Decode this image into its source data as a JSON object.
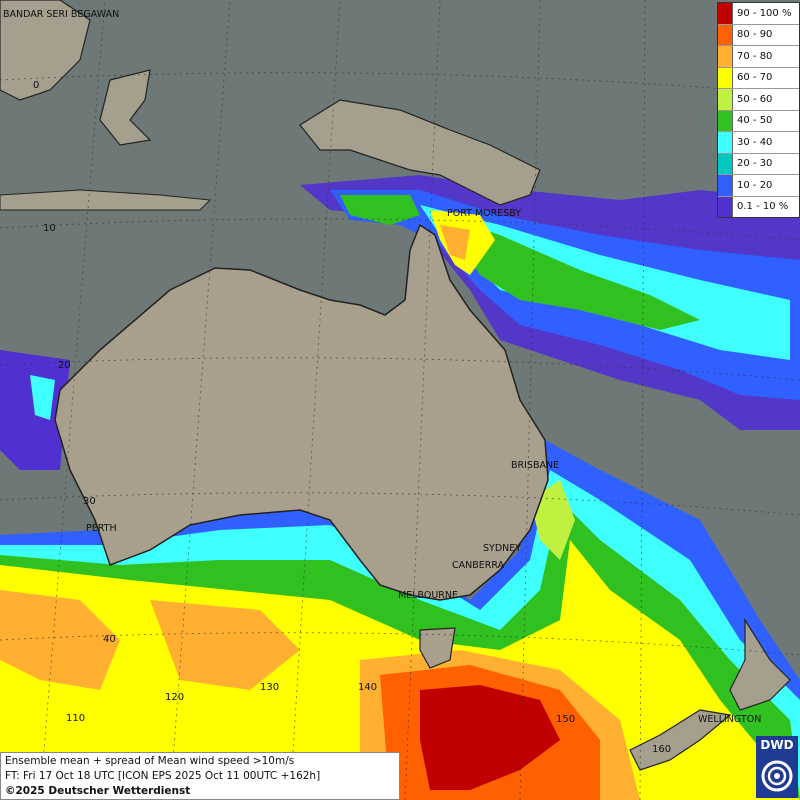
{
  "map": {
    "city_labels": [
      {
        "id": "bandar-seri-begawan",
        "text": "BANDAR SERI BEGAWAN"
      },
      {
        "id": "port-moresby",
        "text": "PORT MORESBY"
      },
      {
        "id": "brisbane",
        "text": "BRISBANE"
      },
      {
        "id": "perth",
        "text": "PERTH"
      },
      {
        "id": "sydney",
        "text": "SYDNEY"
      },
      {
        "id": "canberra",
        "text": "CANBERRA"
      },
      {
        "id": "melbourne",
        "text": "MELBOURNE"
      },
      {
        "id": "wellington",
        "text": "WELLINGTON"
      }
    ],
    "grid_labels": [
      "0",
      "10",
      "20",
      "30",
      "40",
      "110",
      "120",
      "130",
      "140",
      "150",
      "160"
    ]
  },
  "legend": {
    "items": [
      {
        "label": "90 - 100 %",
        "color": "#c00000"
      },
      {
        "label": "80 - 90",
        "color": "#ff6000"
      },
      {
        "label": "70 - 80",
        "color": "#ffb030"
      },
      {
        "label": "60 - 70",
        "color": "#ffff00"
      },
      {
        "label": "50 - 60",
        "color": "#c0f040"
      },
      {
        "label": "40 - 50",
        "color": "#30c020"
      },
      {
        "label": "30 - 40",
        "color": "#40ffff"
      },
      {
        "label": "20 - 30",
        "color": "#00c8c0"
      },
      {
        "label": "10 - 20",
        "color": "#3060ff"
      },
      {
        "label": "0.1 - 10 %",
        "color": "#5030d0"
      }
    ]
  },
  "info": {
    "line1": "Ensemble mean + spread of Mean wind speed >10m/s",
    "line2": "FT: Fri 17 Oct 18 UTC [ICON EPS 2025 Oct 11 00UTC +162h]",
    "line3": "©2025 Deutscher Wetterdienst"
  },
  "logo": {
    "text": "DWD"
  }
}
